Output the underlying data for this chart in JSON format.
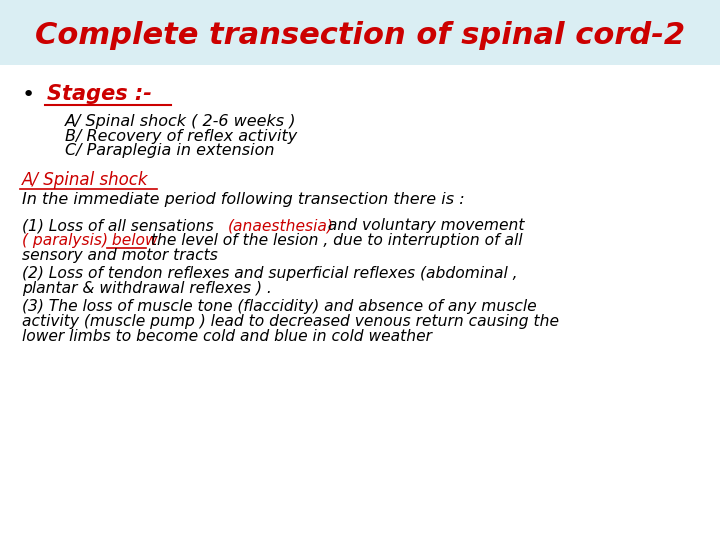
{
  "title": "Complete transection of spinal cord-2",
  "title_color": "#cc0000",
  "title_bg_color": "#daeef3",
  "bg_color": "#ffffff",
  "title_fontsize": 22,
  "stages_label": "Stages :-",
  "stages_items": [
    "A/ Spinal shock ( 2-6 weeks )",
    "B/ Recovery of reflex activity",
    "C/ Paraplegia in extension"
  ],
  "section_heading": "A/ Spinal shock",
  "section_intro": "In the immediate period following transection there is :",
  "p1_line1_a": "(1) Loss of all sensations ",
  "p1_line1_b": "(anaesthesia)",
  "p1_line1_c": " and voluntary movement",
  "p1_line2_a": "( paralysis)",
  "p1_line2_b": " below",
  "p1_line2_c": " the level of the lesion , due to interruption of all",
  "p1_line3": "sensory and motor tracts",
  "p2_line1": "(2) Loss of tendon reflexes and superficial reflexes (abdominal ,",
  "p2_line2": "plantar & withdrawal reflexes ) .",
  "p3_line1": "(3) The loss of muscle tone (flaccidity) and absence of any muscle",
  "p3_line2": "activity (muscle pump ) lead to decreased venous return causing the",
  "p3_line3": "lower limbs to become cold and blue in cold weather",
  "red": "#cc0000",
  "black": "#000000",
  "body_fontsize": 11.2
}
